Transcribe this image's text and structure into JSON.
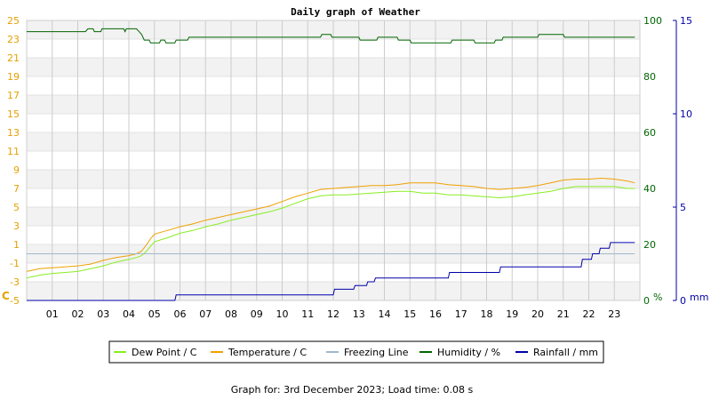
{
  "chart_data": {
    "type": "line",
    "title": "Daily graph of Weather",
    "x": {
      "ticks": [
        "01",
        "02",
        "03",
        "04",
        "05",
        "06",
        "07",
        "08",
        "09",
        "10",
        "11",
        "12",
        "13",
        "14",
        "15",
        "16",
        "17",
        "18",
        "19",
        "20",
        "21",
        "22",
        "23"
      ],
      "range": [
        0,
        24
      ]
    },
    "y_left": {
      "unit": "C",
      "range": [
        -5,
        25
      ],
      "ticks": [
        "25",
        "23",
        "21",
        "19",
        "17",
        "15",
        "13",
        "11",
        "9",
        "7",
        "5",
        "3",
        "1",
        "-1",
        "-3",
        "-5"
      ],
      "color": "#e6a000"
    },
    "y_right_humidity": {
      "unit": "%",
      "range": [
        0,
        100
      ],
      "ticks": [
        "100",
        "80",
        "60",
        "40",
        "20",
        "0"
      ],
      "color": "#006600"
    },
    "y_right_rain": {
      "unit": "mm",
      "range": [
        0,
        15
      ],
      "ticks": [
        "15",
        "10",
        "5",
        "0"
      ],
      "color": "#0000aa"
    },
    "series": [
      {
        "name": "Dew Point / C",
        "axis": "left",
        "color": "#88ee22",
        "points": [
          [
            0,
            -2.6
          ],
          [
            0.5,
            -2.3
          ],
          [
            1,
            -2.1
          ],
          [
            1.5,
            -2.0
          ],
          [
            2,
            -1.9
          ],
          [
            2.5,
            -1.6
          ],
          [
            3,
            -1.3
          ],
          [
            3.5,
            -0.9
          ],
          [
            4,
            -0.6
          ],
          [
            4.3,
            -0.4
          ],
          [
            4.5,
            -0.2
          ],
          [
            4.7,
            0.3
          ],
          [
            4.85,
            0.8
          ],
          [
            5,
            1.3
          ],
          [
            5.5,
            1.7
          ],
          [
            6,
            2.2
          ],
          [
            6.5,
            2.5
          ],
          [
            7,
            2.9
          ],
          [
            7.5,
            3.2
          ],
          [
            8,
            3.6
          ],
          [
            8.5,
            3.9
          ],
          [
            9,
            4.2
          ],
          [
            9.5,
            4.5
          ],
          [
            10,
            4.9
          ],
          [
            10.5,
            5.4
          ],
          [
            11,
            5.9
          ],
          [
            11.5,
            6.2
          ],
          [
            12,
            6.3
          ],
          [
            12.5,
            6.3
          ],
          [
            13,
            6.4
          ],
          [
            13.5,
            6.5
          ],
          [
            14,
            6.6
          ],
          [
            14.5,
            6.7
          ],
          [
            15,
            6.7
          ],
          [
            15.5,
            6.5
          ],
          [
            16,
            6.5
          ],
          [
            16.5,
            6.3
          ],
          [
            17,
            6.3
          ],
          [
            17.5,
            6.2
          ],
          [
            18,
            6.1
          ],
          [
            18.5,
            6.0
          ],
          [
            19,
            6.1
          ],
          [
            19.5,
            6.3
          ],
          [
            20,
            6.5
          ],
          [
            20.5,
            6.7
          ],
          [
            21,
            7.0
          ],
          [
            21.5,
            7.2
          ],
          [
            22,
            7.2
          ],
          [
            22.5,
            7.2
          ],
          [
            23,
            7.2
          ],
          [
            23.5,
            7.0
          ],
          [
            23.8,
            7.0
          ]
        ]
      },
      {
        "name": "Temperature / C",
        "axis": "left",
        "color": "#f0a000",
        "points": [
          [
            0,
            -1.9
          ],
          [
            0.5,
            -1.6
          ],
          [
            1,
            -1.5
          ],
          [
            1.5,
            -1.4
          ],
          [
            2,
            -1.3
          ],
          [
            2.5,
            -1.1
          ],
          [
            3,
            -0.7
          ],
          [
            3.5,
            -0.4
          ],
          [
            4,
            -0.2
          ],
          [
            4.3,
            0.0
          ],
          [
            4.5,
            0.3
          ],
          [
            4.7,
            1.0
          ],
          [
            4.85,
            1.6
          ],
          [
            5,
            2.1
          ],
          [
            5.5,
            2.5
          ],
          [
            6,
            2.9
          ],
          [
            6.5,
            3.2
          ],
          [
            7,
            3.6
          ],
          [
            7.5,
            3.9
          ],
          [
            8,
            4.2
          ],
          [
            8.5,
            4.5
          ],
          [
            9,
            4.8
          ],
          [
            9.5,
            5.1
          ],
          [
            10,
            5.6
          ],
          [
            10.5,
            6.1
          ],
          [
            11,
            6.5
          ],
          [
            11.5,
            6.9
          ],
          [
            12,
            7.0
          ],
          [
            12.5,
            7.1
          ],
          [
            13,
            7.2
          ],
          [
            13.5,
            7.3
          ],
          [
            14,
            7.3
          ],
          [
            14.5,
            7.4
          ],
          [
            15,
            7.6
          ],
          [
            15.5,
            7.6
          ],
          [
            16,
            7.6
          ],
          [
            16.5,
            7.4
          ],
          [
            17,
            7.3
          ],
          [
            17.5,
            7.2
          ],
          [
            18,
            7.0
          ],
          [
            18.5,
            6.9
          ],
          [
            19,
            7.0
          ],
          [
            19.5,
            7.1
          ],
          [
            20,
            7.3
          ],
          [
            20.5,
            7.6
          ],
          [
            21,
            7.9
          ],
          [
            21.5,
            8.0
          ],
          [
            22,
            8.0
          ],
          [
            22.5,
            8.1
          ],
          [
            23,
            8.0
          ],
          [
            23.5,
            7.8
          ],
          [
            23.8,
            7.6
          ]
        ]
      },
      {
        "name": "Freezing Line",
        "axis": "left",
        "color": "#9fb9cc",
        "points": [
          [
            0,
            0
          ],
          [
            23.8,
            0
          ]
        ]
      },
      {
        "name": "Humidity / %",
        "axis": "humidity",
        "color": "#006600",
        "points": [
          [
            0,
            96
          ],
          [
            2.3,
            96
          ],
          [
            2.4,
            97
          ],
          [
            2.6,
            97
          ],
          [
            2.65,
            96
          ],
          [
            2.9,
            96
          ],
          [
            2.95,
            97
          ],
          [
            3.8,
            97
          ],
          [
            3.85,
            96
          ],
          [
            3.9,
            97
          ],
          [
            4.3,
            97
          ],
          [
            4.4,
            96
          ],
          [
            4.5,
            95
          ],
          [
            4.6,
            93
          ],
          [
            4.8,
            93
          ],
          [
            4.85,
            92
          ],
          [
            5.2,
            92
          ],
          [
            5.25,
            93
          ],
          [
            5.4,
            93
          ],
          [
            5.45,
            92
          ],
          [
            5.8,
            92
          ],
          [
            5.85,
            93
          ],
          [
            6.3,
            93
          ],
          [
            6.35,
            94
          ],
          [
            11.5,
            94
          ],
          [
            11.55,
            95
          ],
          [
            11.9,
            95
          ],
          [
            11.95,
            94
          ],
          [
            13,
            94
          ],
          [
            13.05,
            93
          ],
          [
            13.7,
            93
          ],
          [
            13.75,
            94
          ],
          [
            14.5,
            94
          ],
          [
            14.55,
            93
          ],
          [
            15,
            93
          ],
          [
            15.05,
            92
          ],
          [
            16.6,
            92
          ],
          [
            16.65,
            93
          ],
          [
            17.5,
            93
          ],
          [
            17.55,
            92
          ],
          [
            18.3,
            92
          ],
          [
            18.35,
            93
          ],
          [
            18.6,
            93
          ],
          [
            18.65,
            94
          ],
          [
            20,
            94
          ],
          [
            20.05,
            95
          ],
          [
            21,
            95
          ],
          [
            21.05,
            94
          ],
          [
            23.8,
            94
          ]
        ]
      },
      {
        "name": "Rainfall / mm",
        "axis": "rain",
        "color": "#0000aa",
        "points": [
          [
            0,
            0
          ],
          [
            5.8,
            0
          ],
          [
            5.85,
            0.3
          ],
          [
            12.0,
            0.3
          ],
          [
            12.05,
            0.6
          ],
          [
            12.8,
            0.6
          ],
          [
            12.85,
            0.8
          ],
          [
            13.3,
            0.8
          ],
          [
            13.35,
            1.0
          ],
          [
            13.6,
            1.0
          ],
          [
            13.65,
            1.2
          ],
          [
            16.5,
            1.2
          ],
          [
            16.55,
            1.5
          ],
          [
            18.5,
            1.5
          ],
          [
            18.55,
            1.8
          ],
          [
            21.7,
            1.8
          ],
          [
            21.75,
            2.2
          ],
          [
            22.1,
            2.2
          ],
          [
            22.15,
            2.5
          ],
          [
            22.4,
            2.5
          ],
          [
            22.45,
            2.8
          ],
          [
            22.8,
            2.8
          ],
          [
            22.85,
            3.1
          ],
          [
            23.8,
            3.1
          ]
        ]
      }
    ],
    "grid": true,
    "legend_position": "bottom"
  },
  "footer": {
    "text": "Graph for: 3rd December 2023; Load time: 0.08 s"
  }
}
